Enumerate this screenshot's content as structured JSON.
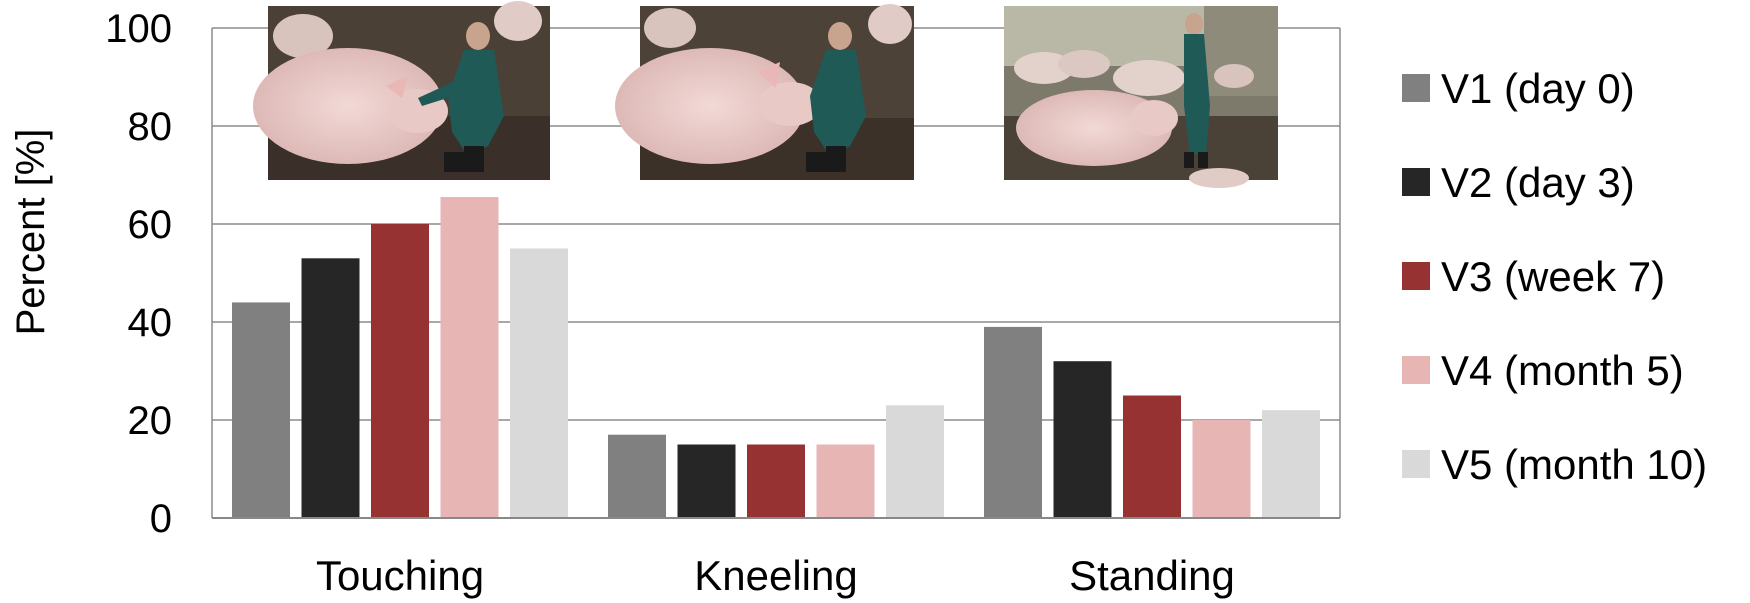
{
  "chart_data": {
    "type": "bar",
    "title": "",
    "xlabel": "",
    "ylabel": "Percent [%]",
    "ylim": [
      0,
      100
    ],
    "yticks": [
      0,
      20,
      40,
      60,
      80,
      100
    ],
    "grid": true,
    "legend_position": "right",
    "categories": [
      "Touching",
      "Kneeling",
      "Standing"
    ],
    "series": [
      {
        "name": "V1 (day 0)",
        "color": "#808080",
        "values": [
          44,
          17,
          39
        ]
      },
      {
        "name": "V2 (day 3)",
        "color": "#262626",
        "values": [
          53,
          15,
          32
        ]
      },
      {
        "name": "V3 (week 7)",
        "color": "#963232",
        "values": [
          60,
          15,
          25
        ]
      },
      {
        "name": "V4 (month 5)",
        "color": "#e6b5b4",
        "values": [
          65.5,
          15,
          20
        ]
      },
      {
        "name": "V5 (month 10)",
        "color": "#d9d9d9",
        "values": [
          55,
          23,
          22
        ]
      }
    ],
    "photos": [
      {
        "depicts": "woman-touching-pig-photo"
      },
      {
        "depicts": "woman-kneeling-near-pig-photo"
      },
      {
        "depicts": "woman-standing-near-pigs-photo"
      }
    ]
  }
}
